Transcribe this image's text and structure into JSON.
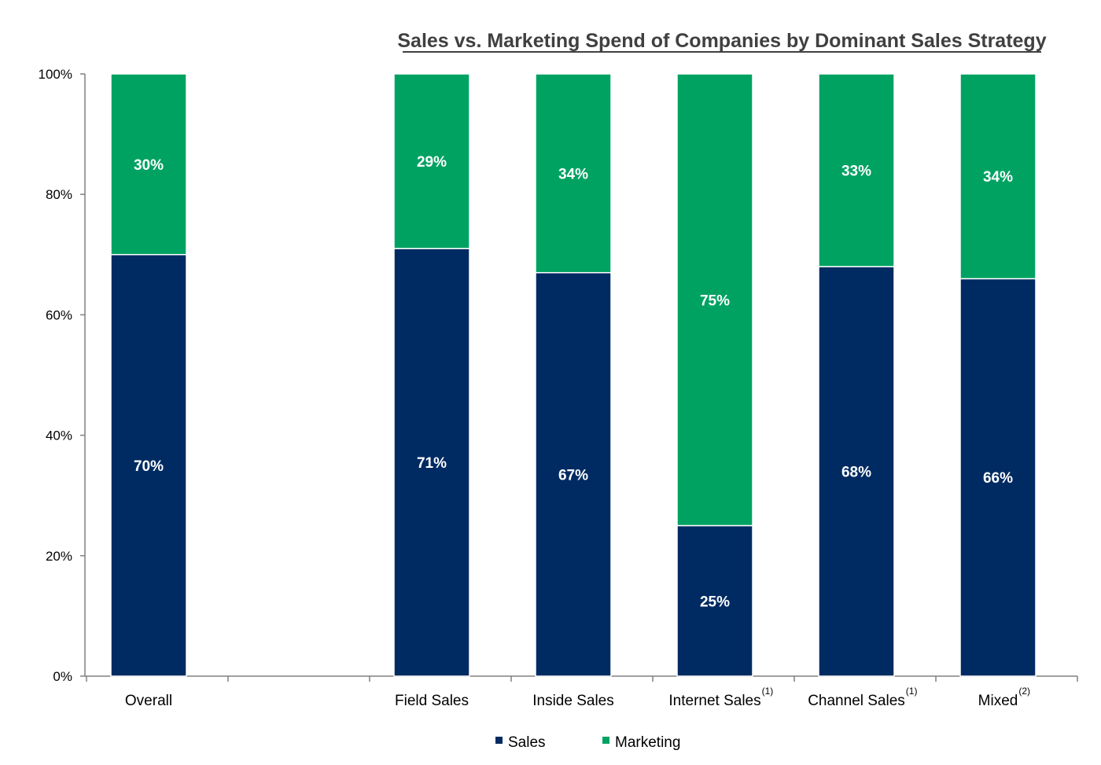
{
  "chart_data": {
    "type": "bar",
    "stacked": true,
    "title": "Sales vs. Marketing Spend of Companies by Dominant Sales Strategy",
    "categories": [
      "Overall",
      "",
      "Field Sales",
      "Inside Sales",
      "Internet Sales",
      "Channel Sales",
      "Mixed"
    ],
    "category_notes": [
      "",
      "",
      "",
      "",
      "(1)",
      "(1)",
      "(2)"
    ],
    "series": [
      {
        "name": "Sales",
        "values": [
          70,
          null,
          71,
          67,
          25,
          68,
          66
        ],
        "labels": [
          "70%",
          "",
          "71%",
          "67%",
          "25%",
          "68%",
          "66%"
        ]
      },
      {
        "name": "Marketing",
        "values": [
          30,
          null,
          29,
          34,
          75,
          33,
          34
        ],
        "labels": [
          "30%",
          "",
          "29%",
          "34%",
          "75%",
          "33%",
          "34%"
        ]
      }
    ],
    "colors": {
      "Sales": "#002b62",
      "Marketing": "#00a262"
    },
    "ylim": [
      0,
      100
    ],
    "yticks": [
      0,
      20,
      40,
      60,
      80,
      100
    ],
    "ytick_labels": [
      "0%",
      "20%",
      "40%",
      "60%",
      "80%",
      "100%"
    ],
    "xlabel": "",
    "ylabel": "",
    "grid": false,
    "legend_position": "bottom"
  }
}
